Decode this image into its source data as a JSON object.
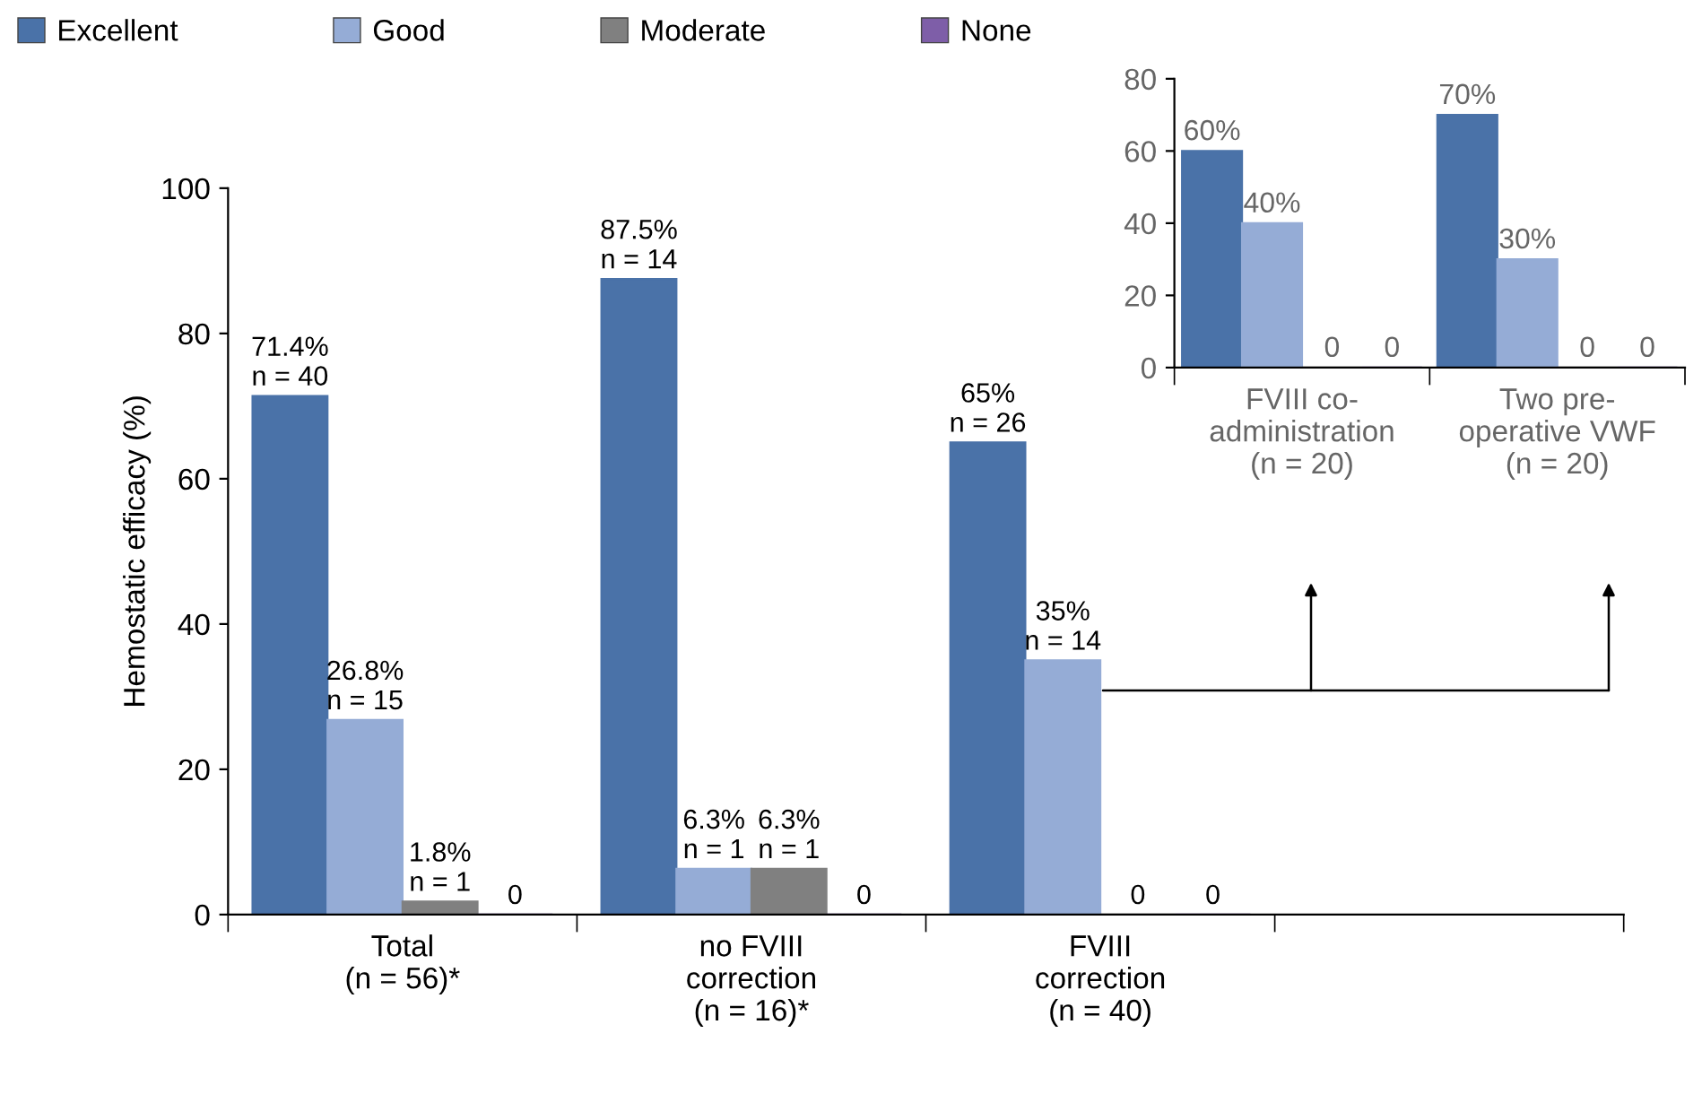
{
  "chart_data": [
    {
      "type": "bar",
      "ylabel": "Hemostatic efficacy (%)",
      "categories": [
        "Total\n(n = 56)*",
        "no FVIII\ncorrection\n(n = 16)*",
        "FVIII\ncorrection\n(n = 40)",
        null
      ],
      "ylim": [
        0,
        100
      ],
      "yticks": [
        0,
        20,
        40,
        60,
        80,
        100
      ],
      "legend": "top",
      "series": [
        {
          "name": "Excellent",
          "color": "#4a72a8",
          "values": [
            71.4,
            87.5,
            65,
            null
          ],
          "value_labels": [
            "71.4%\nn = 40",
            "87.5%\nn = 14",
            "65%\nn = 26",
            null
          ]
        },
        {
          "name": "Good",
          "color": "#95acd6",
          "values": [
            26.8,
            6.3,
            35,
            null
          ],
          "value_labels": [
            "26.8%\nn = 15",
            "6.3%\nn = 1",
            "35%\nn = 14",
            null
          ]
        },
        {
          "name": "Moderate",
          "color": "#808080",
          "values": [
            1.8,
            6.3,
            0,
            null
          ],
          "value_labels": [
            "1.8%\nn = 1",
            "6.3%\nn = 1",
            "0",
            null
          ]
        },
        {
          "name": "None",
          "color": "#7e5ea8",
          "values": [
            0,
            0,
            0,
            null
          ],
          "value_labels": [
            "0",
            "0",
            "0",
            null
          ]
        }
      ]
    },
    {
      "type": "bar",
      "categories": [
        "FVIII co-\nadministration\n(n = 20)",
        "Two pre-\noperative VWF\n(n = 20)"
      ],
      "ylim": [
        0,
        80
      ],
      "yticks": [
        0,
        20,
        40,
        60,
        80
      ],
      "series": [
        {
          "color": "#4a72a8",
          "values": [
            60,
            70
          ],
          "value_labels": [
            "60%",
            "70%"
          ]
        },
        {
          "color": "#95acd6",
          "values": [
            40,
            30
          ],
          "value_labels": [
            "40%",
            "30%"
          ]
        },
        {
          "color": "#808080",
          "values": [
            0,
            0
          ],
          "value_labels": [
            "0",
            "0"
          ]
        },
        {
          "color": "#7e5ea8",
          "values": [
            0,
            0
          ],
          "value_labels": [
            "0",
            "0"
          ]
        }
      ]
    }
  ]
}
